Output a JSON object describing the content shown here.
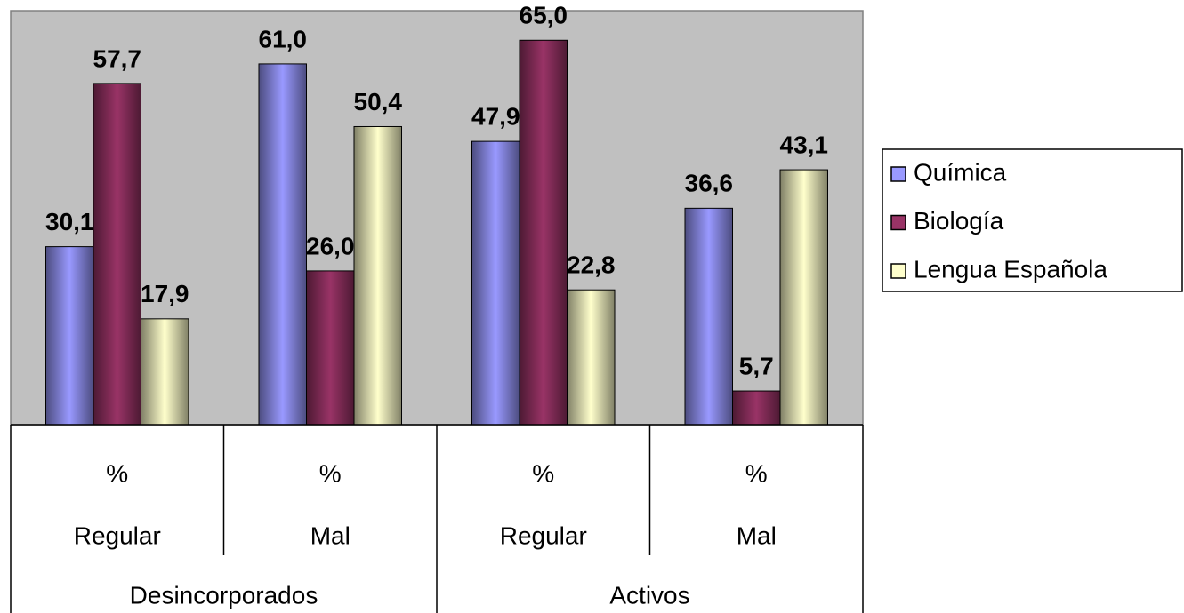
{
  "chart_data": {
    "type": "bar",
    "categories": [
      [
        "%",
        "Regular"
      ],
      [
        "%",
        "Mal"
      ],
      [
        "%",
        "Regular"
      ],
      [
        "%",
        "Mal"
      ]
    ],
    "groups": [
      "Desincorporados",
      "Activos"
    ],
    "series": [
      {
        "name": "Química",
        "color": "#9999ff",
        "values": [
          30.1,
          61.0,
          47.9,
          36.6
        ],
        "value_labels": [
          "30,1",
          "61,0",
          "47,9",
          "36,6"
        ]
      },
      {
        "name": "Biología",
        "color": "#993366",
        "values": [
          57.7,
          26.0,
          65.0,
          5.7
        ],
        "value_labels": [
          "57,7",
          "26,0",
          "65,0",
          "5,7"
        ]
      },
      {
        "name": "Lengua Española",
        "color": "#ffffcc",
        "values": [
          17.9,
          50.4,
          22.8,
          43.1
        ],
        "value_labels": [
          "17,9",
          "50,4",
          "22,8",
          "43,1"
        ]
      }
    ],
    "ylim": [
      0,
      70
    ],
    "plot_background": "#c0c0c0"
  }
}
